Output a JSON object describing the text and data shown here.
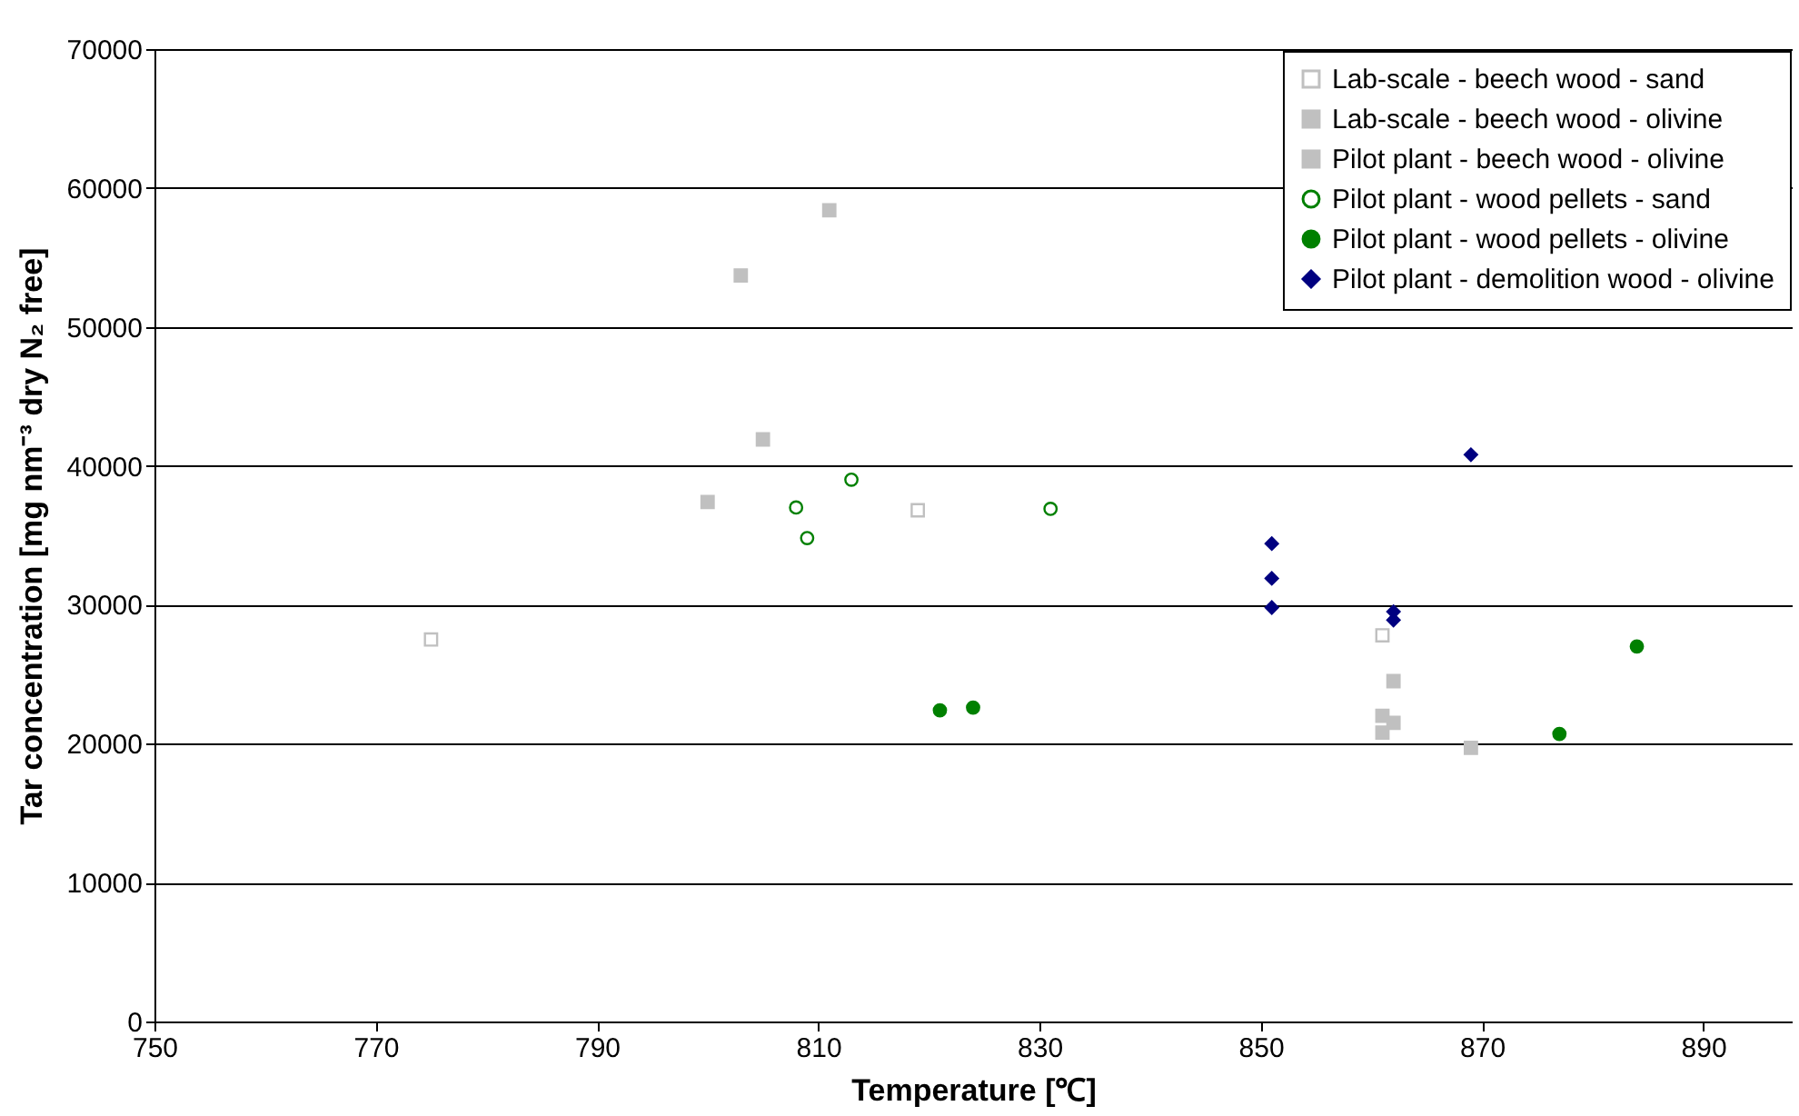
{
  "chart_data": {
    "type": "scatter",
    "xlabel": "Temperature [℃]",
    "ylabel": "Tar concentration [mg nm⁻³ dry N₂ free]",
    "xlim": [
      750,
      898
    ],
    "xticks": [
      750,
      770,
      790,
      810,
      830,
      850,
      870,
      890
    ],
    "ylim": [
      0,
      70000
    ],
    "yticks": [
      0,
      10000,
      20000,
      30000,
      40000,
      50000,
      60000,
      70000
    ],
    "grid": "y",
    "legend": "top right",
    "series": [
      {
        "name": "Lab-scale - beech wood - sand",
        "color": "#c0c0c0",
        "marker": "square",
        "x": [
          775,
          819,
          861
        ],
        "values": [
          27500,
          36800,
          27800
        ]
      },
      {
        "name": "Lab-scale - beech wood - olivine",
        "color": "#c0c0c0",
        "marker": "square",
        "x": [
          862,
          862,
          861,
          861,
          869
        ],
        "values": [
          24500,
          21500,
          22000,
          20800,
          19700
        ]
      },
      {
        "name": "Pilot plant - beech wood - olivine",
        "color": "#c0c0c0",
        "marker": "square",
        "x": [
          811,
          803,
          805,
          800
        ],
        "values": [
          58400,
          53700,
          41900,
          37400
        ]
      },
      {
        "name": "Pilot plant - wood pellets - sand",
        "color": "#008000",
        "marker": "circle",
        "x": [
          813,
          808,
          809,
          831
        ],
        "values": [
          39000,
          37000,
          34800,
          36900
        ]
      },
      {
        "name": "Pilot plant - wood pellets - olivine",
        "color": "#008000",
        "marker": "circle",
        "x": [
          821,
          824,
          877,
          884
        ],
        "values": [
          22400,
          22600,
          20700,
          27000
        ]
      },
      {
        "name": "Pilot plant - demolition wood - olivine",
        "color": "#000080",
        "marker": "diamond",
        "x": [
          851,
          851,
          851,
          862,
          862,
          869
        ],
        "values": [
          34400,
          31900,
          29800,
          29500,
          28900,
          40800
        ]
      }
    ]
  }
}
